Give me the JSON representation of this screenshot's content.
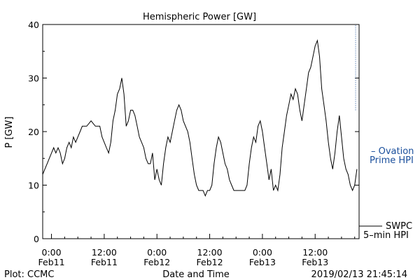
{
  "chart_data": {
    "type": "line",
    "title": "Hemispheric Power [GW]",
    "ylabel": "P [GW]",
    "xlabel": "Date and Time",
    "ylim": [
      0,
      40
    ],
    "xlim_hours": [
      -2,
      70
    ],
    "yticks": [
      0,
      10,
      20,
      30,
      40
    ],
    "xticks": [
      {
        "hour": 0,
        "line1": "0:00",
        "line2": "Feb11"
      },
      {
        "hour": 12,
        "line1": "12:00",
        "line2": "Feb11"
      },
      {
        "hour": 24,
        "line1": "0:00",
        "line2": "Feb12"
      },
      {
        "hour": 36,
        "line1": "12:00",
        "line2": "Feb12"
      },
      {
        "hour": 48,
        "line1": "0:00",
        "line2": "Feb13"
      },
      {
        "hour": 60,
        "line1": "12:00",
        "line2": "Feb13"
      }
    ],
    "series": [
      {
        "name": "Ovation Prime HPI",
        "color": "#1a4f9c",
        "style": "dotted",
        "points": [
          [
            69.2,
            24
          ],
          [
            69.2,
            40
          ]
        ]
      },
      {
        "name": "SWPC 5-min HPI",
        "color": "#000000",
        "style": "solid",
        "points": [
          [
            -2,
            12
          ],
          [
            -1.5,
            13
          ],
          [
            -1,
            14
          ],
          [
            -0.5,
            15
          ],
          [
            0,
            16
          ],
          [
            0.5,
            17
          ],
          [
            1,
            16
          ],
          [
            1.5,
            17
          ],
          [
            2,
            16
          ],
          [
            2.5,
            14
          ],
          [
            3,
            15
          ],
          [
            3.5,
            17
          ],
          [
            4,
            18
          ],
          [
            4.5,
            17
          ],
          [
            5,
            19
          ],
          [
            5.5,
            18
          ],
          [
            6,
            19
          ],
          [
            6.5,
            20
          ],
          [
            7,
            21
          ],
          [
            8,
            21
          ],
          [
            9,
            22
          ],
          [
            10,
            21
          ],
          [
            11,
            21
          ],
          [
            11.5,
            19
          ],
          [
            12,
            18
          ],
          [
            12.5,
            17
          ],
          [
            13,
            16
          ],
          [
            13.5,
            18
          ],
          [
            14,
            22
          ],
          [
            14.5,
            24
          ],
          [
            15,
            27
          ],
          [
            15.5,
            28
          ],
          [
            16,
            30
          ],
          [
            16.5,
            27
          ],
          [
            17,
            21
          ],
          [
            17.5,
            22
          ],
          [
            18,
            24
          ],
          [
            18.5,
            24
          ],
          [
            19,
            23
          ],
          [
            19.5,
            21
          ],
          [
            20,
            19
          ],
          [
            20.5,
            18
          ],
          [
            21,
            17
          ],
          [
            21.5,
            15
          ],
          [
            22,
            14
          ],
          [
            22.5,
            14
          ],
          [
            23,
            16
          ],
          [
            23.5,
            11
          ],
          [
            24,
            13
          ],
          [
            24.5,
            11
          ],
          [
            25,
            10
          ],
          [
            25.5,
            14
          ],
          [
            26,
            17
          ],
          [
            26.5,
            19
          ],
          [
            27,
            18
          ],
          [
            27.5,
            20
          ],
          [
            28,
            22
          ],
          [
            28.5,
            24
          ],
          [
            29,
            25
          ],
          [
            29.5,
            24
          ],
          [
            30,
            22
          ],
          [
            30.5,
            21
          ],
          [
            31,
            20
          ],
          [
            31.5,
            18
          ],
          [
            32,
            15
          ],
          [
            32.5,
            12
          ],
          [
            33,
            10
          ],
          [
            33.5,
            9
          ],
          [
            34,
            9
          ],
          [
            34.5,
            9
          ],
          [
            35,
            8
          ],
          [
            35.5,
            9
          ],
          [
            36,
            9
          ],
          [
            36.5,
            10
          ],
          [
            37,
            14
          ],
          [
            37.5,
            17
          ],
          [
            38,
            19
          ],
          [
            38.5,
            18
          ],
          [
            39,
            16
          ],
          [
            39.5,
            14
          ],
          [
            40,
            13
          ],
          [
            40.5,
            11
          ],
          [
            41,
            10
          ],
          [
            41.5,
            9
          ],
          [
            42,
            9
          ],
          [
            43,
            9
          ],
          [
            44,
            9
          ],
          [
            44.5,
            10
          ],
          [
            45,
            14
          ],
          [
            45.5,
            17
          ],
          [
            46,
            19
          ],
          [
            46.5,
            18
          ],
          [
            47,
            21
          ],
          [
            47.5,
            22
          ],
          [
            48,
            20
          ],
          [
            48.5,
            17
          ],
          [
            49,
            14
          ],
          [
            49.5,
            11
          ],
          [
            50,
            13
          ],
          [
            50.5,
            9
          ],
          [
            51,
            10
          ],
          [
            51.5,
            9
          ],
          [
            52,
            12
          ],
          [
            52.5,
            17
          ],
          [
            53,
            20
          ],
          [
            53.5,
            23
          ],
          [
            54,
            25
          ],
          [
            54.5,
            27
          ],
          [
            55,
            26
          ],
          [
            55.5,
            28
          ],
          [
            56,
            27
          ],
          [
            56.5,
            24
          ],
          [
            57,
            22
          ],
          [
            57.5,
            25
          ],
          [
            58,
            28
          ],
          [
            58.5,
            31
          ],
          [
            59,
            32
          ],
          [
            59.5,
            34
          ],
          [
            60,
            36
          ],
          [
            60.5,
            37
          ],
          [
            61,
            34
          ],
          [
            61.5,
            28
          ],
          [
            62,
            25
          ],
          [
            62.5,
            22
          ],
          [
            63,
            18
          ],
          [
            63.5,
            15
          ],
          [
            64,
            13
          ],
          [
            64.5,
            16
          ],
          [
            65,
            20
          ],
          [
            65.5,
            23
          ],
          [
            66,
            19
          ],
          [
            66.5,
            15
          ],
          [
            67,
            13
          ],
          [
            67.5,
            12
          ],
          [
            68,
            10
          ],
          [
            68.5,
            9
          ],
          [
            69,
            10
          ],
          [
            69.5,
            13
          ]
        ]
      }
    ],
    "legend": [
      {
        "marker": "– Ovation",
        "line2": "Prime HPI",
        "color": "#1a4f9c"
      },
      {
        "marker": "SWPC",
        "line2": "5–min HPI",
        "color": "#000000"
      }
    ]
  },
  "footer": {
    "left": "Plot: CCMC",
    "center": "Date and Time",
    "right": "2019/02/13 21:45:14"
  }
}
